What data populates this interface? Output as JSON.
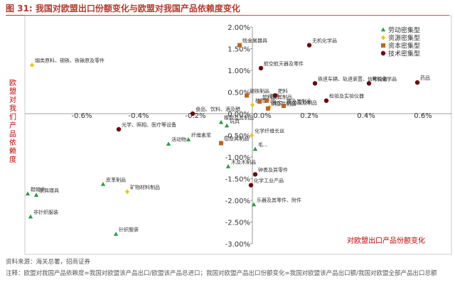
{
  "figure": {
    "number": "图 31:",
    "title": "我国对欧盟出口份额变化与欧盟对我国产品依赖度变化"
  },
  "footer": {
    "source": "资料来源：海关总署，招商证券",
    "note": "注释：欧盟对我国产品依赖度=我国对欧盟该产品出口/欧盟该产品总进口；我国对欧盟产品出口份额变化=我国对欧盟该产品出口额/我国对欧盟全部产品出口总额"
  },
  "colors": {
    "labor": "#2e9e44",
    "resource": "#f2c318",
    "capital": "#c0631e",
    "technology": "#6b0d0d",
    "axis_label": "#c00000"
  },
  "chart_data": {
    "type": "scatter",
    "xlabel": "对欧盟出口产品份额变化",
    "ylabel": "欧盟对我们产品依赖度",
    "xlim": [
      -0.8,
      0.7
    ],
    "ylim": [
      -3.0,
      2.0
    ],
    "x_ticks": [
      "-0.6%",
      "-0.4%",
      "-0.2%",
      "0.0%",
      "0.2%",
      "0.4%",
      "0.6%"
    ],
    "x_tick_values": [
      -0.6,
      -0.4,
      -0.2,
      0.0,
      0.2,
      0.4,
      0.6
    ],
    "y_ticks": [
      "2.00%",
      "1.50%",
      "1.00%",
      "0.50%",
      "0.00%",
      "-0.50%",
      "-1.00%",
      "-1.50%",
      "-2.00%",
      "-2.50%",
      "-3.00%"
    ],
    "y_tick_values": [
      2.0,
      1.5,
      1.0,
      0.5,
      0.0,
      -0.5,
      -1.0,
      -1.5,
      -2.0,
      -2.5,
      -3.0
    ],
    "grid": false,
    "legend_position": "top-right",
    "series": [
      {
        "name": "劳动密集型",
        "marker": "triangle",
        "points": [
          {
            "x": -0.79,
            "y": -1.85,
            "label": "鞋帽伞"
          },
          {
            "x": -0.76,
            "y": -1.88,
            "label": "家具寝具"
          },
          {
            "x": -0.78,
            "y": -2.38,
            "label": "非针织服装"
          },
          {
            "x": -0.525,
            "y": -1.63,
            "label": "皮革制品"
          },
          {
            "x": -0.48,
            "y": -2.78,
            "label": "针织服装"
          },
          {
            "x": -0.295,
            "y": -0.7,
            "label": "活动物"
          },
          {
            "x": -0.225,
            "y": -0.6,
            "label": "纤维素浆"
          },
          {
            "x": -0.11,
            "y": -0.2,
            "label": "橡胶及其制品"
          },
          {
            "x": -0.09,
            "y": -0.28,
            "label": "玩具"
          },
          {
            "x": -0.085,
            "y": -1.22,
            "label": "木及木制品"
          },
          {
            "x": 0.01,
            "y": -0.82,
            "label": "毛..."
          },
          {
            "x": 0.005,
            "y": -2.1,
            "label": "乐器及其零件、附件"
          }
        ]
      },
      {
        "name": "资源密集型",
        "marker": "diamond",
        "points": [
          {
            "x": -0.775,
            "y": 1.12,
            "label": "烟类原料、钢铁、铁锹原及零件"
          },
          {
            "x": -0.44,
            "y": -1.8,
            "label": "矿物材料制品"
          },
          {
            "x": 0.0,
            "y": 0.2,
            "label": "植物产品"
          },
          {
            "x": -0.002,
            "y": -0.5,
            "label": "化学纤维长丝"
          },
          {
            "x": 0.06,
            "y": 0.15,
            "label": "珠宝、贵金属及制品"
          }
        ]
      },
      {
        "name": "资本密集型",
        "marker": "square",
        "points": [
          {
            "x": -0.045,
            "y": 1.58,
            "label": "贱金属器具"
          },
          {
            "x": -0.02,
            "y": 0.42,
            "label": "钢铁制品"
          },
          {
            "x": -0.11,
            "y": -0.68,
            "label": "铅及其制品"
          },
          {
            "x": 0.025,
            "y": 0.28,
            "label": "塑料及其制品"
          },
          {
            "x": 0.05,
            "y": 0.3,
            "label": "钢铁"
          },
          {
            "x": 0.055,
            "y": 0.12,
            "label": "铜及其制品"
          },
          {
            "x": 0.11,
            "y": 0.18,
            "label": "铁及其制品"
          }
        ]
      },
      {
        "name": "技术密集型",
        "marker": "circle",
        "points": [
          {
            "x": 0.2,
            "y": 1.58,
            "label": "无机化学品"
          },
          {
            "x": 0.03,
            "y": 1.05,
            "label": "航空航天器及零件"
          },
          {
            "x": 0.08,
            "y": 0.42,
            "label": "肥料"
          },
          {
            "x": 0.22,
            "y": 0.7,
            "label": "铁道车辆、轨道装置、信号设备"
          },
          {
            "x": 0.26,
            "y": 0.3,
            "label": "检验及实验仪器"
          },
          {
            "x": 0.41,
            "y": 0.7,
            "label": "有机化学品"
          },
          {
            "x": 0.58,
            "y": 0.72,
            "label": "药品"
          },
          {
            "x": -0.47,
            "y": -0.36,
            "label": "光学、照相、医疗等设备"
          },
          {
            "x": -0.21,
            "y": 0.0,
            "label": "食品、饮料、酒及醋"
          },
          {
            "x": 0.01,
            "y": -1.4,
            "label": "钟表及其零件"
          },
          {
            "x": -0.005,
            "y": -1.65,
            "label": "化学工业产品"
          }
        ]
      }
    ]
  }
}
